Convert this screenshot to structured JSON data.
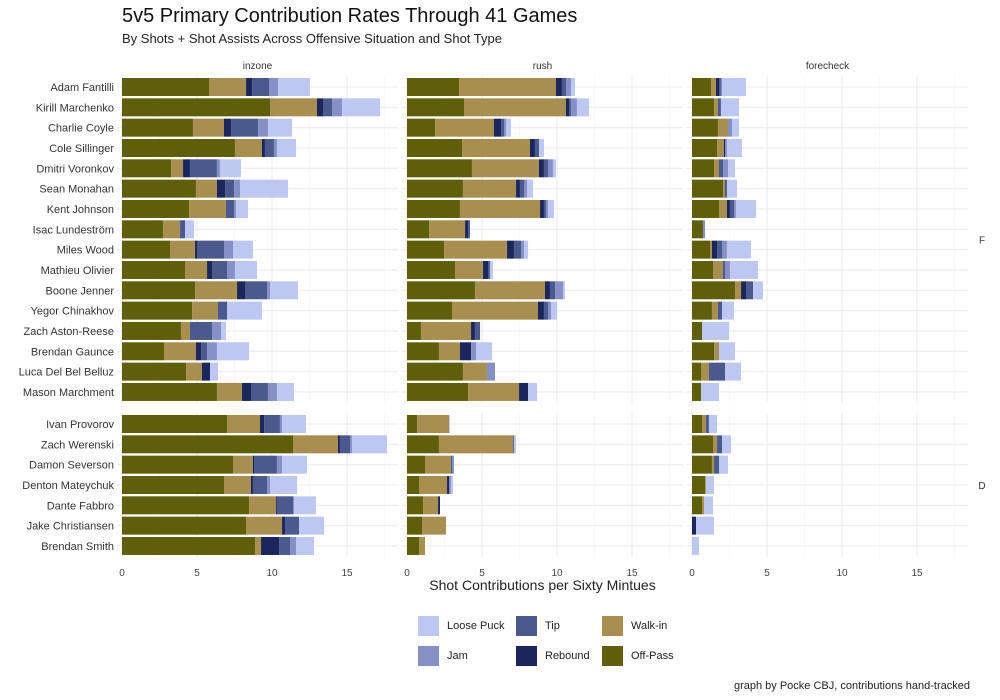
{
  "title": "5v5 Primary Contribution Rates Through 41 Games",
  "subtitle": "By Shots + Shot Assists Across Offensive Situation and Shot Type",
  "caption": "graph by Pocke CBJ, contributions hand-tracked",
  "chart_data": {
    "type": "bar",
    "orientation": "horizontal",
    "stacked": true,
    "xlabel": "Shot Contributions per Sixty Mintues",
    "xlim": [
      0,
      18.4
    ],
    "xticks": [
      0,
      5,
      10,
      15
    ],
    "grid": true,
    "legend_position": "bottom",
    "facet_columns": [
      "inzone",
      "rush",
      "forecheck"
    ],
    "facet_rows": [
      "F",
      "D"
    ],
    "stack_order": [
      "Off-Pass",
      "Walk-in",
      "Rebound",
      "Tip",
      "Jam",
      "Loose Puck"
    ],
    "legend_order": [
      "Loose Puck",
      "Jam",
      "Tip",
      "Rebound",
      "Walk-in",
      "Off-Pass"
    ],
    "colors": {
      "Off-Pass": "#5f5f0a",
      "Walk-in": "#a98f4f",
      "Rebound": "#1b275c",
      "Tip": "#4b5a8e",
      "Jam": "#8591c6",
      "Loose Puck": "#bcc8f1"
    },
    "groups": [
      {
        "row": "F",
        "players": [
          {
            "name": "Adam Fantilli",
            "inzone": [
              5.8,
              2.47,
              0.4,
              1.13,
              0.6,
              2.13
            ],
            "rush": [
              3.47,
              6.46,
              0.4,
              0.27,
              0.33,
              0.27
            ],
            "forecheck": [
              1.27,
              0.33,
              0.2,
              0.13,
              0.07,
              1.6
            ]
          },
          {
            "name": "Kirill Marchenko",
            "inzone": [
              9.87,
              3.13,
              0.4,
              0.6,
              0.67,
              2.53
            ],
            "rush": [
              3.8,
              6.8,
              0.2,
              0.13,
              0.4,
              0.8
            ],
            "forecheck": [
              1.47,
              0.26,
              0,
              0.2,
              0,
              1.2
            ]
          },
          {
            "name": "Charlie Coyle",
            "inzone": [
              4.73,
              2.07,
              0.47,
              1.8,
              0.67,
              1.6
            ],
            "rush": [
              1.87,
              3.93,
              0.47,
              0.2,
              0.13,
              0.33
            ],
            "forecheck": [
              1.73,
              0.67,
              0,
              0,
              0.27,
              0.46
            ]
          },
          {
            "name": "Cole Sillinger",
            "inzone": [
              7.53,
              1.8,
              0.2,
              0.6,
              0.2,
              1.27
            ],
            "rush": [
              3.67,
              4.53,
              0.33,
              0.27,
              0,
              0.33
            ],
            "forecheck": [
              1.67,
              0.46,
              0.07,
              0,
              0.13,
              1.0
            ]
          },
          {
            "name": "Dmitri Voronkov",
            "inzone": [
              3.27,
              0.8,
              0.46,
              1.8,
              0.2,
              1.4
            ],
            "rush": [
              4.33,
              4.47,
              0.33,
              0.27,
              0.33,
              0.2
            ],
            "forecheck": [
              1.47,
              0.33,
              0,
              0.27,
              0.33,
              0.47
            ]
          },
          {
            "name": "Sean Monahan",
            "inzone": [
              4.93,
              1.4,
              0.54,
              0.6,
              0.4,
              3.2
            ],
            "rush": [
              3.73,
              3.54,
              0.26,
              0.27,
              0.2,
              0.4
            ],
            "forecheck": [
              2.07,
              0.13,
              0,
              0.13,
              0,
              0.67
            ]
          },
          {
            "name": "Kent Johnson",
            "inzone": [
              4.47,
              2.46,
              0,
              0.54,
              0.13,
              0.8
            ],
            "rush": [
              3.53,
              5.34,
              0.26,
              0.14,
              0.13,
              0.4
            ],
            "forecheck": [
              1.8,
              0.53,
              0.2,
              0.27,
              0.13,
              1.34
            ]
          },
          {
            "name": "Isac Lundeström",
            "inzone": [
              2.73,
              1.14,
              0,
              0.33,
              0,
              0.6
            ],
            "rush": [
              1.47,
              2.4,
              0.2,
              0.13,
              0,
              0
            ],
            "forecheck": [
              0.73,
              0,
              0,
              0,
              0.14,
              0
            ]
          },
          {
            "name": "Miles Wood",
            "inzone": [
              3.2,
              1.67,
              0.13,
              1.8,
              0.6,
              1.33
            ],
            "rush": [
              2.47,
              4.2,
              0.46,
              0.47,
              0.2,
              0.27
            ],
            "forecheck": [
              1.2,
              0.13,
              0.34,
              0.33,
              0.33,
              1.6
            ]
          },
          {
            "name": "Mathieu Olivier",
            "inzone": [
              4.2,
              1.47,
              0.33,
              1.0,
              0.53,
              1.47
            ],
            "rush": [
              3.2,
              1.87,
              0.33,
              0.13,
              0,
              0.2
            ],
            "forecheck": [
              1.4,
              0.67,
              0,
              0.13,
              0.33,
              1.87
            ]
          },
          {
            "name": "Boone Jenner",
            "inzone": [
              4.87,
              2.8,
              0.53,
              1.47,
              0.2,
              1.86
            ],
            "rush": [
              4.53,
              4.67,
              0.33,
              0.34,
              0.53,
              0.13
            ],
            "forecheck": [
              2.87,
              0.4,
              0.33,
              0.47,
              0,
              0.66
            ]
          },
          {
            "name": "Yegor Chinakhov",
            "inzone": [
              4.67,
              1.73,
              0,
              0.6,
              0,
              2.33
            ],
            "rush": [
              3.0,
              5.73,
              0.4,
              0.27,
              0.2,
              0.4
            ],
            "forecheck": [
              1.33,
              0.4,
              0,
              0.27,
              0,
              0.8
            ]
          },
          {
            "name": "Zach Aston-Reese",
            "inzone": [
              3.93,
              0.6,
              0,
              1.47,
              0.6,
              0.33
            ],
            "rush": [
              0.93,
              3.34,
              0.26,
              0.34,
              0,
              0
            ],
            "forecheck": [
              0.67,
              0,
              0,
              0,
              0,
              1.8
            ]
          },
          {
            "name": "Brendan Gaunce",
            "inzone": [
              2.8,
              2.13,
              0.34,
              0.4,
              0.66,
              2.14
            ],
            "rush": [
              2.13,
              1.4,
              0.74,
              0,
              0.33,
              1.07
            ],
            "forecheck": [
              1.47,
              0.33,
              0,
              0,
              0,
              1.07
            ]
          },
          {
            "name": "Luca Del Bel Belluz",
            "inzone": [
              4.27,
              1.06,
              0.54,
              0,
              0,
              0.53
            ],
            "rush": [
              3.73,
              1.6,
              0,
              0,
              0.54,
              0
            ],
            "forecheck": [
              0.6,
              0.53,
              0,
              1.07,
              0,
              1.07
            ]
          },
          {
            "name": "Mason Marchment",
            "inzone": [
              6.33,
              1.67,
              0.6,
              1.13,
              0.6,
              1.14
            ],
            "rush": [
              4.07,
              3.4,
              0.6,
              0,
              0,
              0.6
            ],
            "forecheck": [
              0.6,
              0,
              0,
              0,
              0,
              1.2
            ]
          }
        ]
      },
      {
        "row": "D",
        "players": [
          {
            "name": "Ivan Provorov",
            "inzone": [
              7.0,
              2.2,
              0.27,
              1.06,
              0.14,
              1.6
            ],
            "rush": [
              0.67,
              2.13,
              0,
              0,
              0,
              0.07
            ],
            "forecheck": [
              0.67,
              0.26,
              0,
              0.2,
              0,
              0.54
            ]
          },
          {
            "name": "Zach Werenski",
            "inzone": [
              11.4,
              3.0,
              0.13,
              0.67,
              0.13,
              2.34
            ],
            "rush": [
              2.13,
              4.94,
              0,
              0.06,
              0,
              0.14
            ],
            "forecheck": [
              1.4,
              0.27,
              0,
              0.33,
              0,
              0.6
            ]
          },
          {
            "name": "Damon Severson",
            "inzone": [
              7.4,
              1.33,
              0.07,
              1.53,
              0.34,
              1.66
            ],
            "rush": [
              1.2,
              1.73,
              0,
              0.07,
              0.13,
              0
            ],
            "forecheck": [
              1.33,
              0.14,
              0,
              0.33,
              0,
              0.6
            ]
          },
          {
            "name": "Denton Mateychuk",
            "inzone": [
              6.8,
              1.8,
              0.13,
              0.94,
              0.2,
              1.8
            ],
            "rush": [
              0.8,
              1.87,
              0.13,
              0,
              0.13,
              0.14
            ],
            "forecheck": [
              0.87,
              0.06,
              0,
              0,
              0,
              0.54
            ]
          },
          {
            "name": "Dante Fabbro",
            "inzone": [
              8.47,
              1.8,
              0.06,
              1.07,
              0.07,
              1.46
            ],
            "rush": [
              1.07,
              1.0,
              0.13,
              0,
              0,
              0
            ],
            "forecheck": [
              0.67,
              0.13,
              0,
              0,
              0,
              0.6
            ]
          },
          {
            "name": "Jake Christiansen",
            "inzone": [
              8.27,
              2.4,
              0.2,
              0.93,
              0,
              1.67
            ],
            "rush": [
              1.0,
              1.6,
              0,
              0,
              0,
              0
            ],
            "forecheck": [
              0,
              0,
              0.27,
              0,
              0,
              1.2
            ]
          },
          {
            "name": "Brendan Smith",
            "inzone": [
              8.87,
              0.4,
              1.2,
              0.73,
              0.4,
              1.2
            ],
            "rush": [
              0.8,
              0.4,
              0,
              0,
              0,
              0
            ],
            "forecheck": [
              0,
              0,
              0,
              0,
              0,
              0.47
            ]
          }
        ]
      }
    ]
  }
}
